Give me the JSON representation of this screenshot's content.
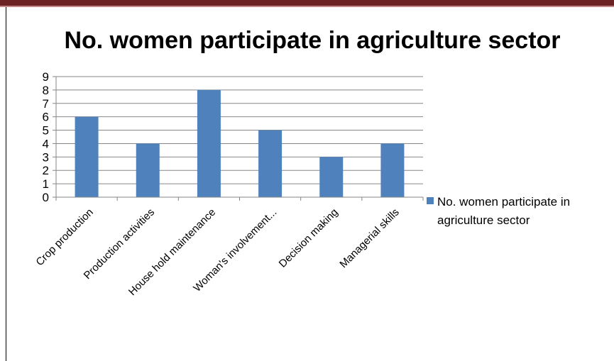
{
  "chart_data": {
    "type": "bar",
    "title": "No. women participate in agriculture sector",
    "categories": [
      "Crop production",
      "Production activities",
      "House hold maintenance",
      "Woman's involvement...",
      "Decision  making",
      "Managerial skills"
    ],
    "series": [
      {
        "name": "No. women participate in agriculture sector",
        "values": [
          6,
          4,
          8,
          5,
          3,
          4
        ],
        "color": "#4f81bd"
      }
    ],
    "ylim": [
      0,
      9
    ],
    "yticks": [
      "0",
      "1",
      "2",
      "3",
      "4",
      "5",
      "6",
      "7",
      "8",
      "9"
    ],
    "grid": true,
    "legend_position": "right",
    "legend_lines": [
      "No. women participate in",
      "agriculture sector"
    ]
  },
  "colors": {
    "top_bar": "#6b2323",
    "bar": "#4f81bd"
  }
}
